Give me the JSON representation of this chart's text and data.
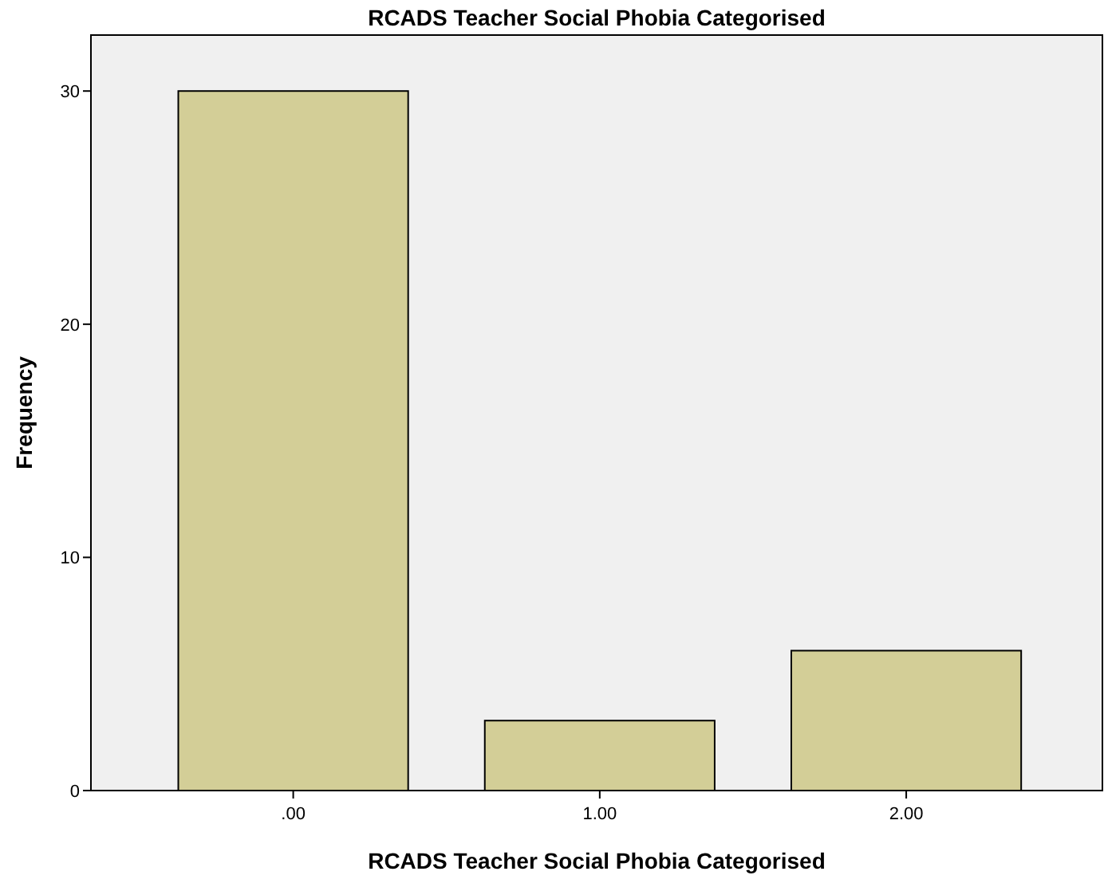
{
  "chart_data": {
    "type": "bar",
    "title": "RCADS Teacher Social Phobia Categorised",
    "xlabel": "RCADS Teacher Social Phobia Categorised",
    "ylabel": "Frequency",
    "categories": [
      ".00",
      "1.00",
      "2.00"
    ],
    "values": [
      30,
      3,
      6
    ],
    "color": "#d3ce97",
    "ylim": [
      0,
      32.4
    ],
    "yticks": [
      0,
      10,
      20,
      30
    ],
    "grid": false
  }
}
